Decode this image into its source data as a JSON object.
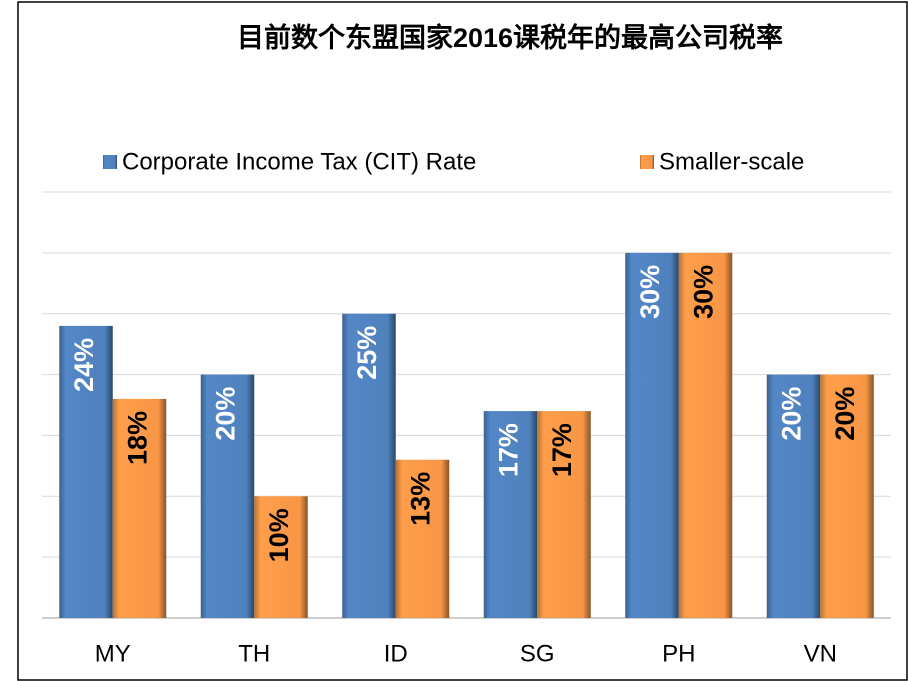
{
  "chart_data": {
    "type": "bar",
    "title": "目前数个东盟国家2016课税年的最高公司税率",
    "categories": [
      "MY",
      "TH",
      "ID",
      "SG",
      "PH",
      "VN"
    ],
    "series": [
      {
        "name": "Corporate Income Tax (CIT) Rate",
        "color": "#4f81bd",
        "values": [
          24,
          20,
          25,
          17,
          30,
          20
        ],
        "value_labels": [
          "24%",
          "20%",
          "25%",
          "17%",
          "30%",
          "20%"
        ]
      },
      {
        "name": "Smaller-scale",
        "color": "#f79646",
        "values": [
          18,
          10,
          13,
          17,
          30,
          20
        ],
        "value_labels": [
          "18%",
          "10%",
          "13%",
          "17%",
          "30%",
          "20%"
        ]
      }
    ],
    "ylim": [
      0,
      35
    ],
    "yticks": [
      0,
      5,
      10,
      15,
      20,
      25,
      30,
      35
    ],
    "grid": true,
    "legend": "top"
  }
}
